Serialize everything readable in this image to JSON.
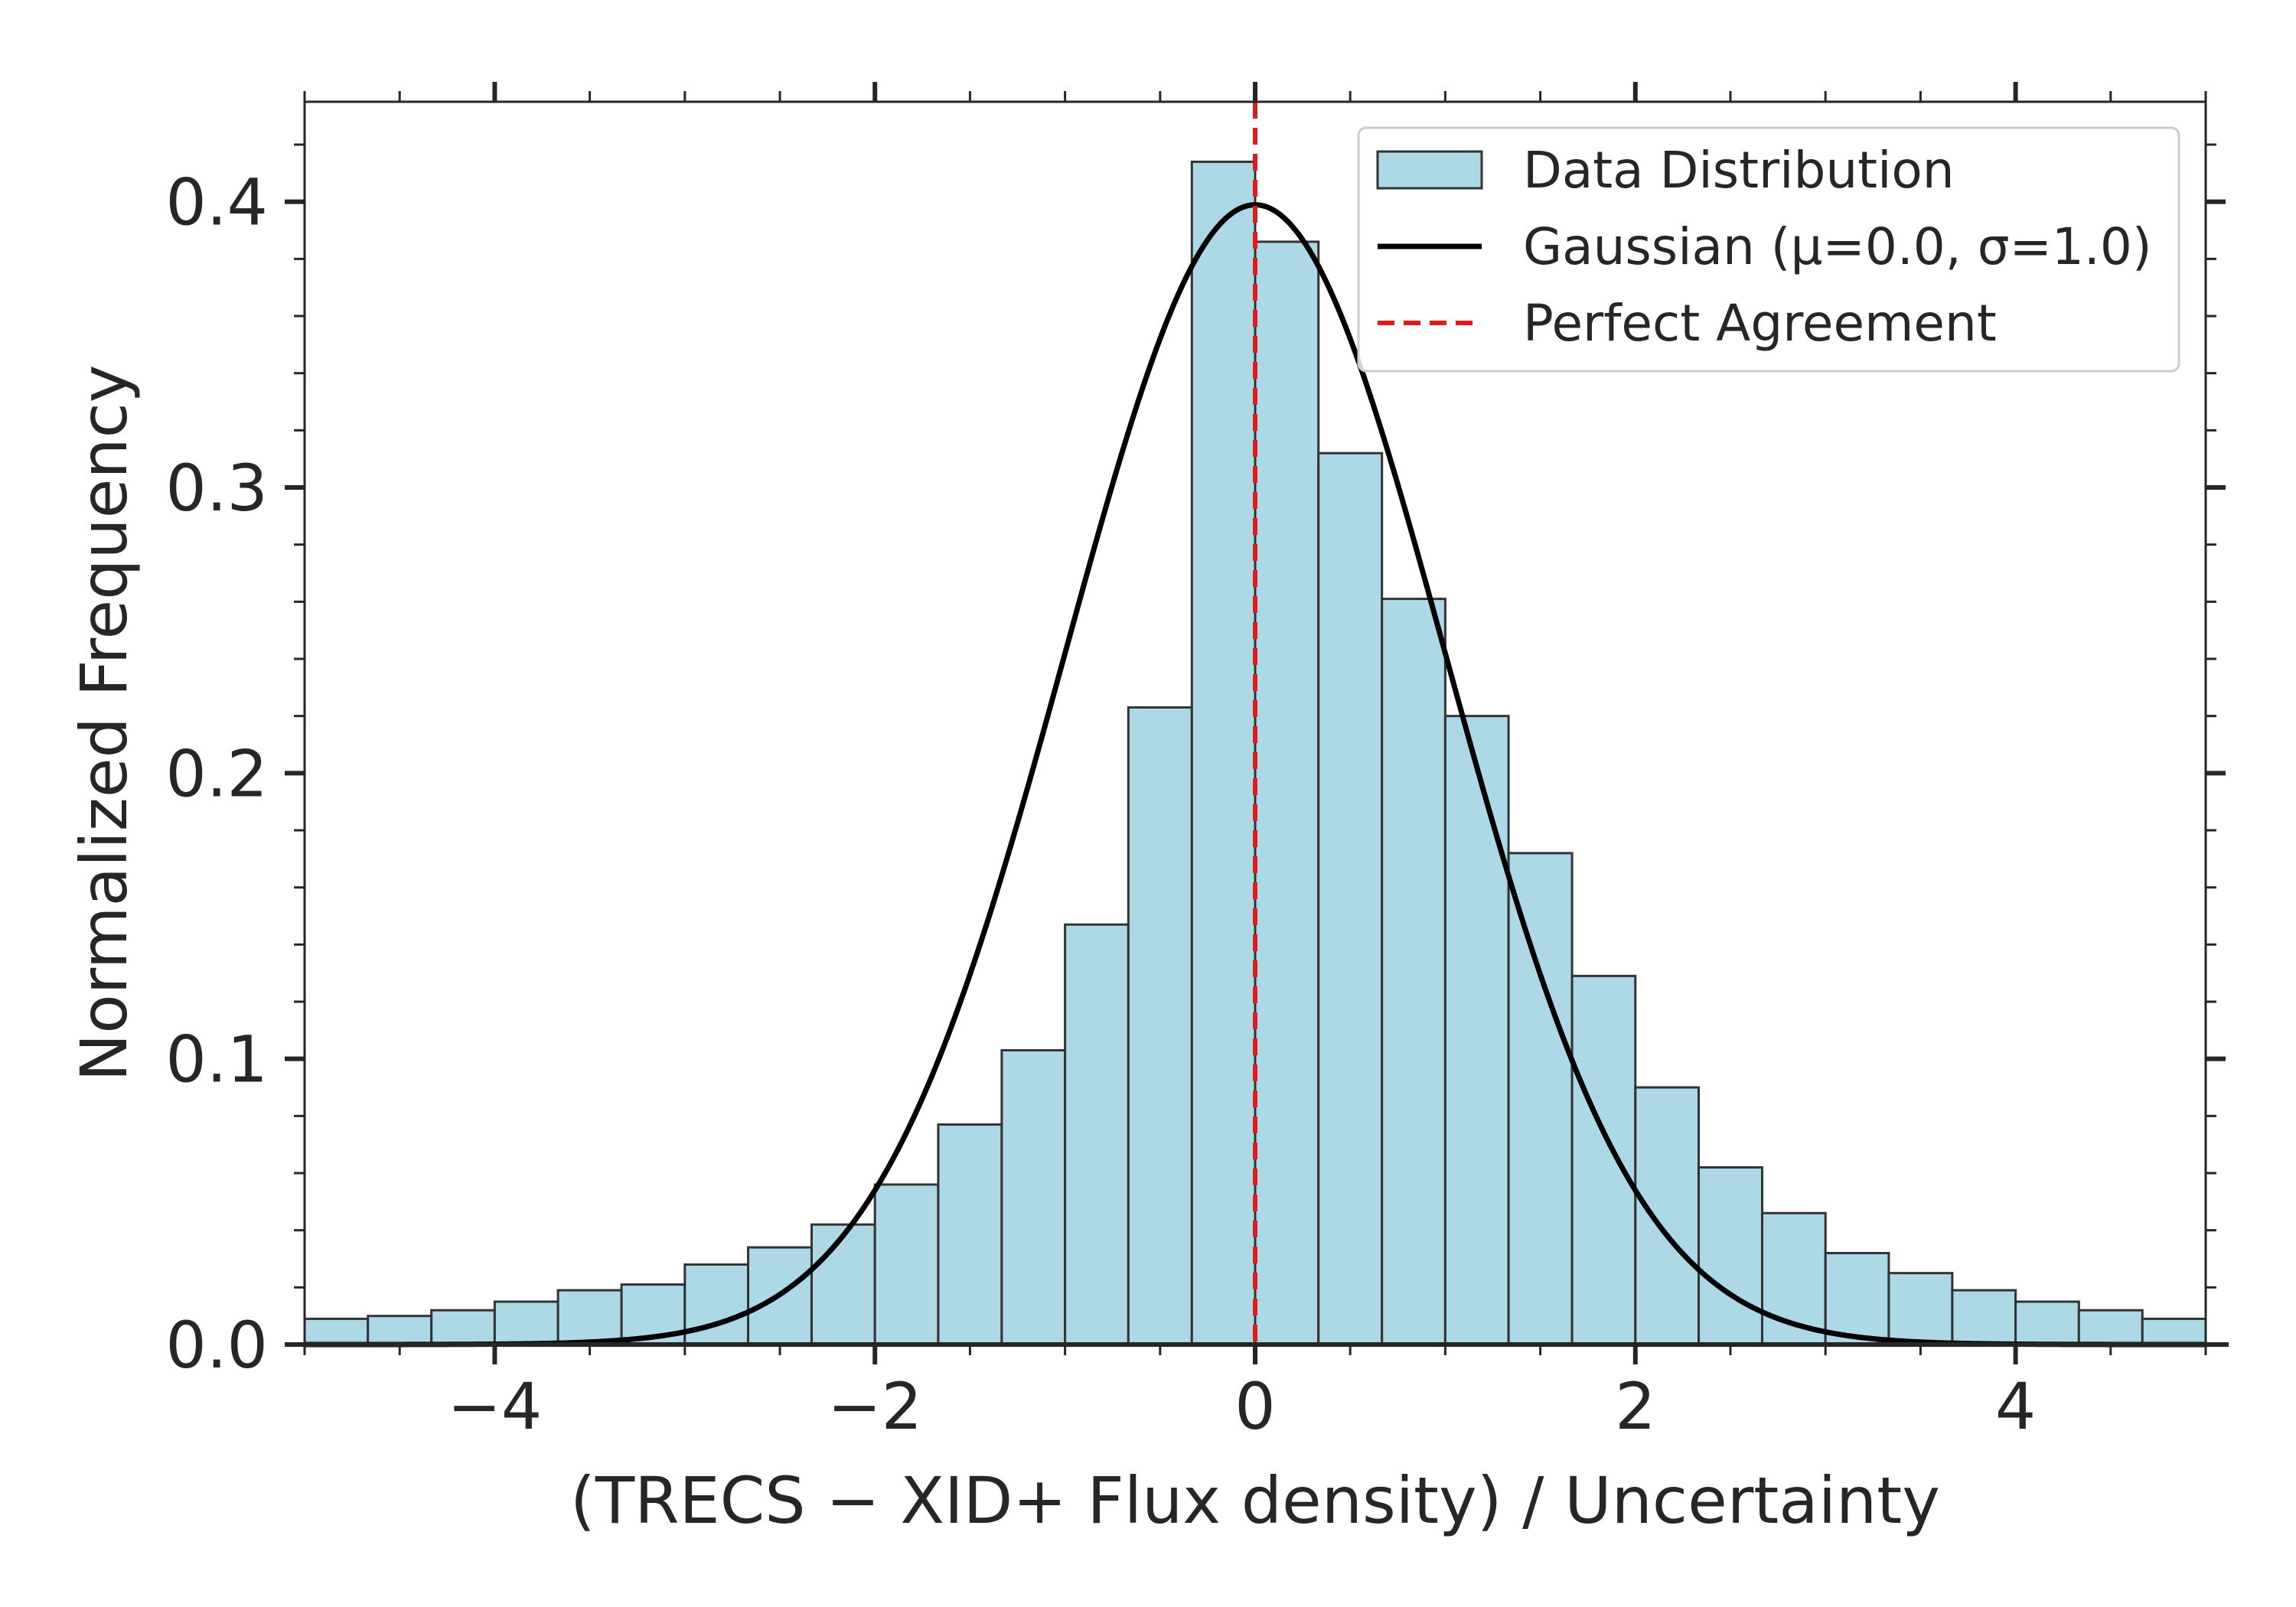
{
  "chart_data": {
    "type": "bar",
    "xlabel": "(TRECS − XID+ Flux density) / Uncertainty",
    "ylabel": "Normalized Frequency",
    "xlim": [
      -5,
      5
    ],
    "ylim": [
      0,
      0.435
    ],
    "x_ticks": [
      -4,
      -2,
      0,
      2,
      4
    ],
    "x_tick_labels": [
      "−4",
      "−2",
      "0",
      "2",
      "4"
    ],
    "y_ticks": [
      0.0,
      0.1,
      0.2,
      0.3,
      0.4
    ],
    "y_tick_labels": [
      "0.0",
      "0.1",
      "0.2",
      "0.3",
      "0.4"
    ],
    "grid": false,
    "bin_edges": [
      -5.0,
      -4.667,
      -4.333,
      -4.0,
      -3.667,
      -3.333,
      -3.0,
      -2.667,
      -2.333,
      -2.0,
      -1.667,
      -1.333,
      -1.0,
      -0.667,
      -0.333,
      0.0,
      0.333,
      0.667,
      1.0,
      1.333,
      1.667,
      2.0,
      2.333,
      2.667,
      3.0,
      3.333,
      3.667,
      4.0,
      4.333,
      4.667,
      5.0
    ],
    "series": [
      {
        "name": "Data Distribution",
        "kind": "histogram",
        "color": "#add8e6",
        "edge_color": "#333333",
        "values": [
          0.009,
          0.01,
          0.012,
          0.015,
          0.019,
          0.021,
          0.028,
          0.034,
          0.042,
          0.056,
          0.077,
          0.103,
          0.147,
          0.223,
          0.414,
          0.386,
          0.312,
          0.261,
          0.22,
          0.172,
          0.129,
          0.09,
          0.062,
          0.046,
          0.032,
          0.025,
          0.019,
          0.015,
          0.012,
          0.009
        ]
      },
      {
        "name": "Gaussian (μ=0.0, σ=1.0)",
        "kind": "line",
        "color": "#000000",
        "mu": 0.0,
        "sigma": 1.0
      },
      {
        "name": "Perfect Agreement",
        "kind": "vline",
        "color": "#e31a1c",
        "linestyle": "dashed",
        "x": 0.0
      }
    ],
    "legend": {
      "placement": "top-right"
    }
  }
}
